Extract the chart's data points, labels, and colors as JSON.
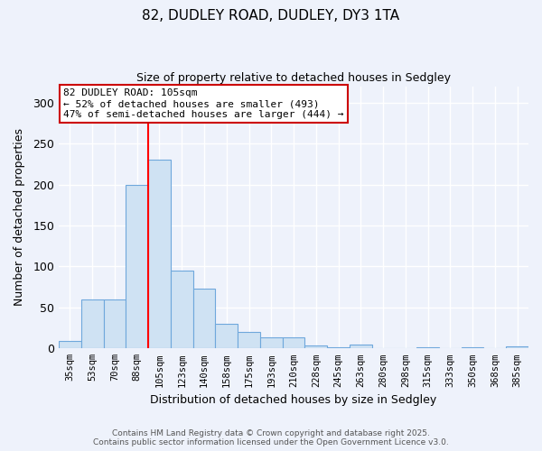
{
  "title1": "82, DUDLEY ROAD, DUDLEY, DY3 1TA",
  "title2": "Size of property relative to detached houses in Sedgley",
  "xlabel": "Distribution of detached houses by size in Sedgley",
  "ylabel": "Number of detached properties",
  "categories": [
    "35sqm",
    "53sqm",
    "70sqm",
    "88sqm",
    "105sqm",
    "123sqm",
    "140sqm",
    "158sqm",
    "175sqm",
    "193sqm",
    "210sqm",
    "228sqm",
    "245sqm",
    "263sqm",
    "280sqm",
    "298sqm",
    "315sqm",
    "333sqm",
    "350sqm",
    "368sqm",
    "385sqm"
  ],
  "values": [
    9,
    60,
    60,
    200,
    230,
    95,
    73,
    30,
    20,
    14,
    14,
    4,
    1,
    5,
    0,
    0,
    1,
    0,
    1,
    0,
    2
  ],
  "bar_color": "#cfe2f3",
  "bar_edge_color": "#6fa8dc",
  "red_line_x": 3.5,
  "annotation_title": "82 DUDLEY ROAD: 105sqm",
  "annotation_line1": "← 52% of detached houses are smaller (493)",
  "annotation_line2": "47% of semi-detached houses are larger (444) →",
  "ylim": [
    0,
    320
  ],
  "yticks": [
    0,
    50,
    100,
    150,
    200,
    250,
    300
  ],
  "footer1": "Contains HM Land Registry data © Crown copyright and database right 2025.",
  "footer2": "Contains public sector information licensed under the Open Government Licence v3.0.",
  "bg_color": "#eef2fb",
  "grid_color": "#ffffff",
  "annotation_box_color": "#ffffff",
  "annotation_border_color": "#cc0000"
}
